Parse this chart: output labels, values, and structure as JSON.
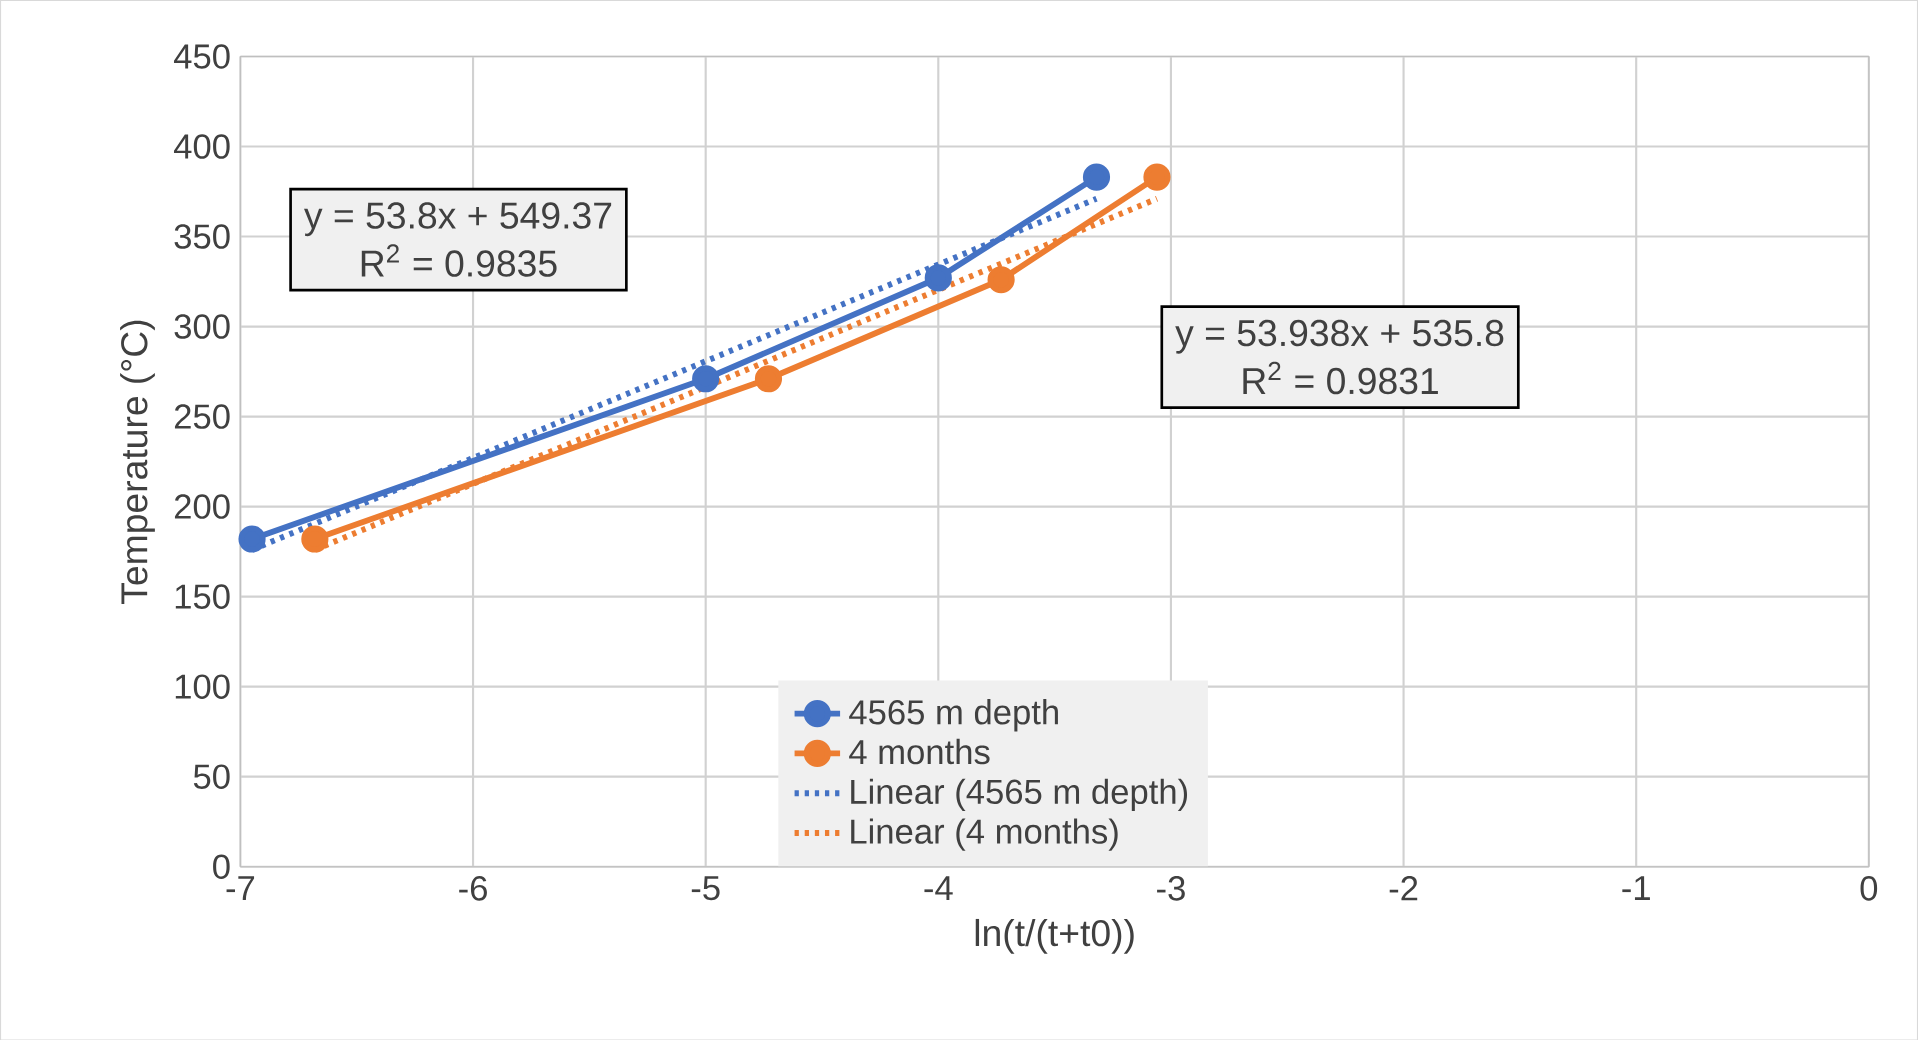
{
  "chart_data": {
    "type": "line",
    "xlabel": "ln(t/(t+t0))",
    "ylabel": "Temperature (°C)",
    "xlim": [
      -7,
      0
    ],
    "xticks": [
      -7,
      -6,
      -5,
      -4,
      -3,
      -2,
      -1,
      0
    ],
    "ylim": [
      0,
      450
    ],
    "yticks": [
      0,
      50,
      100,
      150,
      200,
      250,
      300,
      350,
      400,
      450
    ],
    "grid": true,
    "legend": "bottom",
    "marker": "circle",
    "line_style": "solid",
    "series": [
      {
        "name": "4565 m depth",
        "color": "#4472c4",
        "x": [
          -6.95,
          -5.0,
          -4.0,
          -3.32
        ],
        "values": [
          182,
          271,
          327,
          383
        ]
      },
      {
        "name": "4 months",
        "color": "#ed7d31",
        "x": [
          -6.68,
          -4.73,
          -3.73,
          -3.06
        ],
        "values": [
          182,
          271,
          326,
          383
        ]
      },
      {
        "name": "Linear (4565 m depth)",
        "color": "#4472c4",
        "marker": "none",
        "line_style": "dotted",
        "x": [
          -6.95,
          -3.32
        ],
        "values": [
          176,
          371
        ]
      },
      {
        "name": "Linear (4 months)",
        "color": "#ed7d31",
        "marker": "none",
        "line_style": "dotted",
        "x": [
          -6.68,
          -3.06
        ],
        "values": [
          176,
          371
        ]
      }
    ],
    "annotations": [
      "y = 53.8x + 549.37",
      "R$^{2}$ = 0.9835",
      "y = 53.938x + 535.8",
      "R$^{2}$ = 0.9831"
    ]
  }
}
